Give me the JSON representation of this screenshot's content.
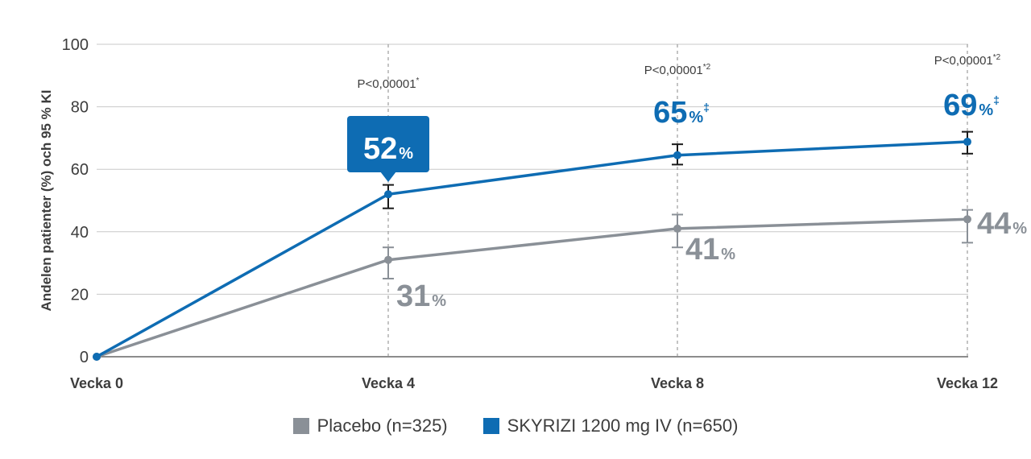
{
  "colors": {
    "placebo": "#8a9097",
    "skyrizi": "#0e6cb3",
    "grid": "#c8c8c8",
    "axis": "#666666",
    "text": "#3d3d3d",
    "errorbar_dark": "#1a1a1a"
  },
  "chart_data": {
    "type": "line",
    "x": [
      "Vecka 0",
      "Vecka 4",
      "Vecka 8",
      "Vecka 12"
    ],
    "ylabel": "Andelen patienter (%) och 95 % KI",
    "xlabel": "",
    "ylim": [
      0,
      100
    ],
    "yticks": [
      "0",
      "20",
      "40",
      "60",
      "80",
      "100"
    ],
    "grid": true,
    "legend_position": "bottom-center",
    "series": [
      {
        "key": "placebo",
        "name": "Placebo (n=325)",
        "values": [
          0,
          31,
          41,
          44
        ],
        "ci_low": [
          0,
          25,
          35,
          36.5
        ],
        "ci_high": [
          0,
          35,
          45.5,
          47
        ],
        "labels": [
          "",
          "31",
          "41",
          "44"
        ],
        "label_unit": "%"
      },
      {
        "key": "skyrizi",
        "name": "SKYRIZI 1200 mg IV (n=650)",
        "values": [
          0,
          52,
          64.5,
          68.8
        ],
        "ci_low": [
          0,
          47.5,
          61.5,
          65
        ],
        "ci_high": [
          0,
          55,
          68,
          72
        ],
        "labels": [
          "",
          "52",
          "65",
          "69"
        ],
        "label_unit": "%",
        "label_superscripts": [
          "",
          "",
          "‡",
          "‡"
        ]
      }
    ],
    "annotations": [
      {
        "week": "Vecka 4",
        "text": "P<0,00001",
        "sup": "*"
      },
      {
        "week": "Vecka 8",
        "text": "P<0,00001",
        "sup": "*2"
      },
      {
        "week": "Vecka 12",
        "text": "P<0,00001",
        "sup": "*2"
      }
    ]
  }
}
